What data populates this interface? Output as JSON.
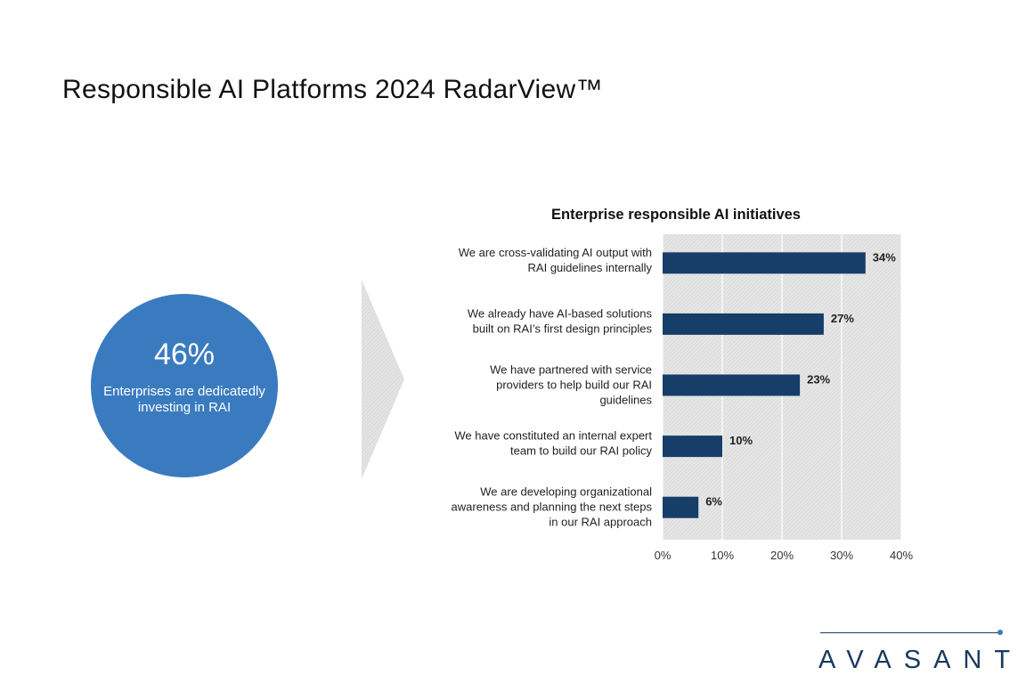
{
  "page": {
    "title": "Responsible AI Platforms 2024 RadarView™"
  },
  "stat": {
    "value": "46%",
    "label": "Enterprises are dedicatedly investing in RAI",
    "color": "#3a7bbf"
  },
  "logo": {
    "text": "AVASANT",
    "color": "#1b3a5c",
    "accent": "#3a7bbf"
  },
  "chart_data": {
    "type": "bar",
    "orientation": "horizontal",
    "title": "Enterprise responsible AI initiatives",
    "categories": [
      "We are cross-validating AI output with RAI guidelines internally",
      "We already have AI-based solutions built on RAI’s first design principles",
      "We have partnered with service providers to help build our RAI guidelines",
      "We have constituted an internal expert team to build our RAI policy",
      "We are developing organizational awareness and planning the next steps in our RAI approach"
    ],
    "category_lines": [
      [
        "We are cross-validating AI output with",
        "RAI guidelines internally"
      ],
      [
        "We already have AI-based solutions",
        "built on RAI’s first design principles"
      ],
      [
        "We have partnered with service",
        "providers to help build our RAI",
        "guidelines"
      ],
      [
        "We have constituted an internal expert",
        "team to build our RAI policy"
      ],
      [
        "We are developing organizational",
        "awareness and planning the next steps",
        "in our RAI approach"
      ]
    ],
    "values": [
      34,
      27,
      23,
      10,
      6
    ],
    "data_labels": [
      "34%",
      "27%",
      "23%",
      "10%",
      "6%"
    ],
    "xlim": [
      0,
      40
    ],
    "xticks": [
      "0%",
      "10%",
      "20%",
      "30%",
      "40%"
    ],
    "grid": true,
    "bar_color": "#173e69",
    "plot_background": "#d8d8d8"
  }
}
